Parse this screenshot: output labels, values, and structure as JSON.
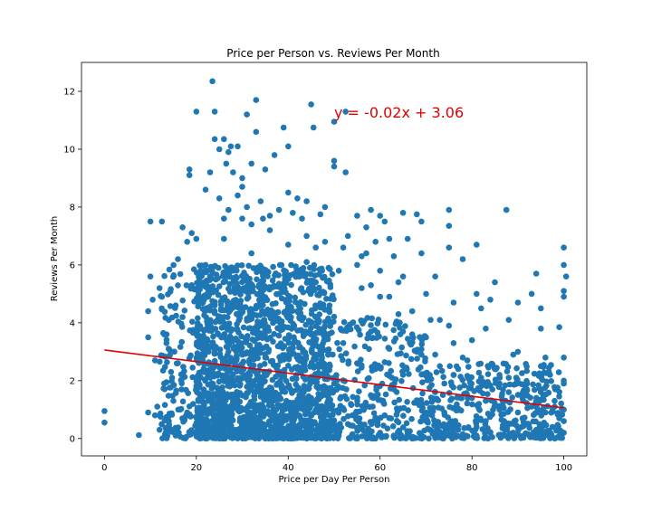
{
  "chart_data": {
    "type": "scatter",
    "title": "Price per Person vs. Reviews Per Month",
    "xlabel": "Price per Day Per Person",
    "ylabel": "Reviews Per Month",
    "xlim": [
      -5,
      105
    ],
    "ylim": [
      -0.6,
      13.0
    ],
    "xticks": [
      0,
      20,
      40,
      60,
      80,
      100
    ],
    "yticks": [
      0,
      2,
      4,
      6,
      8,
      10,
      12
    ],
    "grid": false,
    "point_color": "#1f77b4",
    "series": [
      {
        "values": [
          [
            0,
            0.55
          ],
          [
            0,
            0.95
          ],
          [
            7.5,
            0.12
          ],
          [
            9.5,
            0.9
          ],
          [
            10,
            7.5
          ],
          [
            12.5,
            7.5
          ],
          [
            10,
            5.6
          ],
          [
            9.5,
            4.4
          ],
          [
            10.5,
            4.8
          ],
          [
            9.5,
            3.5
          ],
          [
            11,
            2.7
          ],
          [
            11.5,
            1.1
          ],
          [
            12,
            5.2
          ],
          [
            12.5,
            4.9
          ],
          [
            13,
            3.6
          ],
          [
            13.5,
            3.3
          ],
          [
            14,
            4.1
          ],
          [
            14.5,
            2.3
          ],
          [
            15,
            5.6
          ],
          [
            15.5,
            4.6
          ],
          [
            16,
            6.2
          ],
          [
            17,
            7.3
          ],
          [
            18,
            6.8
          ],
          [
            18.5,
            9.3
          ],
          [
            18.5,
            9.1
          ],
          [
            19,
            7.1
          ],
          [
            20,
            6.9
          ],
          [
            20,
            11.3
          ],
          [
            22,
            8.6
          ],
          [
            23,
            9.2
          ],
          [
            23.5,
            12.35
          ],
          [
            24,
            11.3
          ],
          [
            24,
            10.35
          ],
          [
            25,
            10.0
          ],
          [
            26,
            10.35
          ],
          [
            26.5,
            9.5
          ],
          [
            27,
            9.9
          ],
          [
            27.5,
            10.1
          ],
          [
            28,
            9.2
          ],
          [
            29,
            10.1
          ],
          [
            30,
            9.0
          ],
          [
            31,
            11.2
          ],
          [
            32,
            9.5
          ],
          [
            33,
            11.7
          ],
          [
            33,
            10.6
          ],
          [
            35,
            9.3
          ],
          [
            37,
            9.8
          ],
          [
            39,
            10.75
          ],
          [
            40,
            10.1
          ],
          [
            40,
            8.5
          ],
          [
            42,
            8.3
          ],
          [
            44,
            8.2
          ],
          [
            45,
            11.55
          ],
          [
            45.5,
            10.75
          ],
          [
            47,
            7.75
          ],
          [
            48,
            8.0
          ],
          [
            50,
            10.95
          ],
          [
            50,
            9.6
          ],
          [
            50,
            9.4
          ],
          [
            52.5,
            9.2
          ],
          [
            52.5,
            11.3
          ],
          [
            55,
            7.7
          ],
          [
            56,
            6.3
          ],
          [
            57,
            7.3
          ],
          [
            58,
            7.9
          ],
          [
            59,
            6.8
          ],
          [
            60,
            7.7
          ],
          [
            61,
            7.5
          ],
          [
            62,
            6.9
          ],
          [
            63,
            6.3
          ],
          [
            64,
            5.4
          ],
          [
            65,
            7.8
          ],
          [
            66,
            6.9
          ],
          [
            68,
            7.75
          ],
          [
            69,
            7.5
          ],
          [
            69,
            6.4
          ],
          [
            70,
            5.0
          ],
          [
            72,
            5.6
          ],
          [
            75,
            7.9
          ],
          [
            75,
            7.35
          ],
          [
            75,
            6.6
          ],
          [
            76,
            4.7
          ],
          [
            78,
            6.2
          ],
          [
            81,
            6.7
          ],
          [
            81,
            5.0
          ],
          [
            82,
            4.5
          ],
          [
            84,
            4.8
          ],
          [
            85,
            5.4
          ],
          [
            87.5,
            7.9
          ],
          [
            88,
            4.1
          ],
          [
            90,
            4.7
          ],
          [
            90,
            3.0
          ],
          [
            93,
            5.0
          ],
          [
            94,
            5.7
          ],
          [
            95,
            4.5
          ],
          [
            95,
            3.8
          ],
          [
            96,
            2.8
          ],
          [
            97,
            2.2
          ],
          [
            99,
            3.85
          ],
          [
            100,
            6.6
          ],
          [
            100,
            6.0
          ],
          [
            100,
            5.1
          ],
          [
            100,
            4.9
          ],
          [
            100.5,
            5.6
          ],
          [
            100,
            2.8
          ],
          [
            100,
            2.0
          ],
          [
            100,
            1.9
          ],
          [
            100,
            1.0
          ],
          [
            100,
            0.6
          ],
          [
            100,
            0.2
          ],
          [
            99,
            0.7
          ],
          [
            98,
            1.3
          ],
          [
            97.5,
            0.4
          ],
          [
            96,
            0.9
          ],
          [
            95,
            1.6
          ],
          [
            94,
            0.3
          ],
          [
            93,
            1.1
          ],
          [
            92,
            0.5
          ],
          [
            91,
            1.4
          ],
          [
            90,
            0.9
          ],
          [
            89,
            0.2
          ],
          [
            88,
            1.6
          ],
          [
            87,
            0.6
          ],
          [
            86,
            1.9
          ],
          [
            85,
            2.4
          ],
          [
            84,
            0.8
          ],
          [
            83,
            1.3
          ],
          [
            82,
            2.1
          ],
          [
            81,
            0.4
          ],
          [
            80,
            3.4
          ],
          [
            79,
            1.5
          ],
          [
            78,
            2.8
          ],
          [
            77,
            0.3
          ],
          [
            76,
            2.2
          ],
          [
            75,
            3.9
          ],
          [
            74,
            0.9
          ],
          [
            73,
            2.5
          ],
          [
            72,
            1.6
          ],
          [
            71,
            4.1
          ],
          [
            70,
            0.6
          ],
          [
            69,
            2.9
          ],
          [
            68,
            1.3
          ],
          [
            67,
            3.6
          ],
          [
            66,
            0.2
          ],
          [
            65,
            2.2
          ],
          [
            64,
            4.3
          ],
          [
            63,
            1.7
          ],
          [
            62,
            3.1
          ],
          [
            61,
            0.8
          ],
          [
            60,
            4.9
          ],
          [
            59,
            2.4
          ],
          [
            58,
            3.7
          ],
          [
            57,
            1.1
          ],
          [
            56,
            5.2
          ],
          [
            55,
            2.6
          ],
          [
            54,
            4.0
          ],
          [
            53,
            0.5
          ],
          [
            52,
            3.3
          ],
          [
            51,
            5.8
          ],
          [
            50,
            1.9
          ],
          [
            49,
            4.6
          ],
          [
            48,
            0.9
          ],
          [
            47,
            3.0
          ],
          [
            46,
            5.4
          ],
          [
            45,
            1.4
          ],
          [
            44,
            6.1
          ],
          [
            43,
            2.7
          ],
          [
            42,
            4.4
          ],
          [
            41,
            0.3
          ],
          [
            40,
            6.7
          ],
          [
            39,
            3.2
          ],
          [
            38,
            5.0
          ],
          [
            37,
            1.5
          ],
          [
            36,
            7.2
          ],
          [
            35,
            2.8
          ],
          [
            34,
            4.9
          ],
          [
            33,
            0.7
          ],
          [
            32,
            6.4
          ],
          [
            31,
            3.5
          ],
          [
            30,
            7.6
          ],
          [
            29,
            1.2
          ],
          [
            28,
            5.8
          ],
          [
            27,
            3.0
          ],
          [
            26,
            6.9
          ],
          [
            25,
            0.4
          ],
          [
            24,
            4.6
          ],
          [
            23,
            2.1
          ],
          [
            22,
            6.0
          ],
          [
            21,
            3.8
          ],
          [
            20,
            1.7
          ],
          [
            19,
            5.3
          ],
          [
            18,
            0.9
          ],
          [
            17,
            4.2
          ],
          [
            16,
            2.6
          ],
          [
            15,
            1.3
          ],
          [
            14,
            0.6
          ],
          [
            13,
            1.9
          ],
          [
            12,
            0.3
          ],
          [
            11,
            0.8
          ],
          [
            15.5,
            0.1
          ],
          [
            21,
            0.1
          ],
          [
            24,
            0.2
          ],
          [
            27,
            0.1
          ],
          [
            30,
            0.15
          ],
          [
            33,
            0.1
          ],
          [
            36,
            0.2
          ],
          [
            39,
            0.1
          ],
          [
            42,
            0.15
          ],
          [
            45,
            0.1
          ],
          [
            48,
            0.2
          ],
          [
            51,
            0.1
          ],
          [
            54,
            0.15
          ],
          [
            57,
            0.1
          ],
          [
            60,
            0.2
          ],
          [
            63,
            0.1
          ],
          [
            66,
            0.15
          ],
          [
            69,
            0.1
          ],
          [
            72,
            0.2
          ],
          [
            75,
            0.1
          ],
          [
            78,
            0.15
          ],
          [
            81,
            0.1
          ],
          [
            84,
            0.2
          ],
          [
            87,
            0.1
          ],
          [
            90,
            0.15
          ],
          [
            93,
            0.1
          ],
          [
            96,
            0.2
          ],
          [
            25,
            8.3
          ],
          [
            27,
            7.9
          ],
          [
            29,
            8.4
          ],
          [
            31,
            8.0
          ],
          [
            34,
            8.2
          ],
          [
            36,
            7.7
          ],
          [
            38,
            7.9
          ],
          [
            41,
            7.8
          ],
          [
            43,
            7.6
          ],
          [
            30,
            8.7
          ],
          [
            26,
            7.6
          ],
          [
            32,
            7.4
          ],
          [
            34.5,
            7.6
          ],
          [
            44,
            7.0
          ],
          [
            46,
            6.6
          ],
          [
            48,
            6.8
          ],
          [
            52,
            6.6
          ],
          [
            53,
            7.0
          ],
          [
            55,
            6.0
          ],
          [
            57,
            6.4
          ],
          [
            58,
            5.3
          ],
          [
            60,
            5.8
          ],
          [
            62,
            4.9
          ],
          [
            65,
            5.6
          ],
          [
            67,
            4.4
          ],
          [
            70,
            3.5
          ],
          [
            73,
            4.1
          ],
          [
            76,
            3.3
          ],
          [
            79,
            2.7
          ],
          [
            83,
            3.8
          ],
          [
            86,
            2.2
          ],
          [
            89,
            2.9
          ],
          [
            92,
            1.9
          ],
          [
            95,
            2.5
          ],
          [
            98,
            1.1
          ],
          [
            72,
            2.9
          ],
          [
            74,
            1.9
          ],
          [
            77,
            2.4
          ],
          [
            80,
            1.4
          ],
          [
            83,
            0.6
          ],
          [
            86,
            1.0
          ],
          [
            88,
            2.1
          ],
          [
            91,
            0.7
          ],
          [
            94,
            1.3
          ]
        ]
      }
    ],
    "dense_cloud": {
      "x_range": [
        12,
        100
      ],
      "y_range": [
        0,
        6
      ],
      "note_count": 2600,
      "peak_x": 32
    },
    "regression": {
      "slope": -0.02,
      "intercept": 3.06,
      "x_range": [
        0,
        100
      ],
      "color": "#e00000",
      "annotation": "y = -0.02x + 3.06",
      "annotation_x": 50,
      "annotation_y": 11.1
    }
  }
}
